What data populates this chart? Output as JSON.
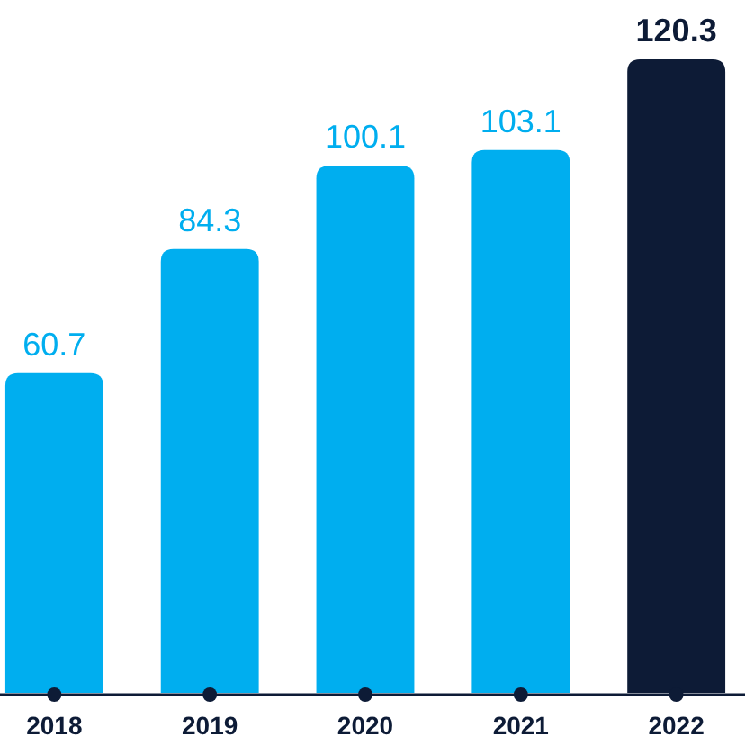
{
  "chart_data": {
    "type": "bar",
    "categories": [
      "2018",
      "2019",
      "2020",
      "2021",
      "2022"
    ],
    "values": [
      60.7,
      84.3,
      100.1,
      103.1,
      120.3
    ],
    "colors": [
      "#00aeef",
      "#00aeef",
      "#00aeef",
      "#00aeef",
      "#0d1b36"
    ],
    "data_labels": true
  }
}
